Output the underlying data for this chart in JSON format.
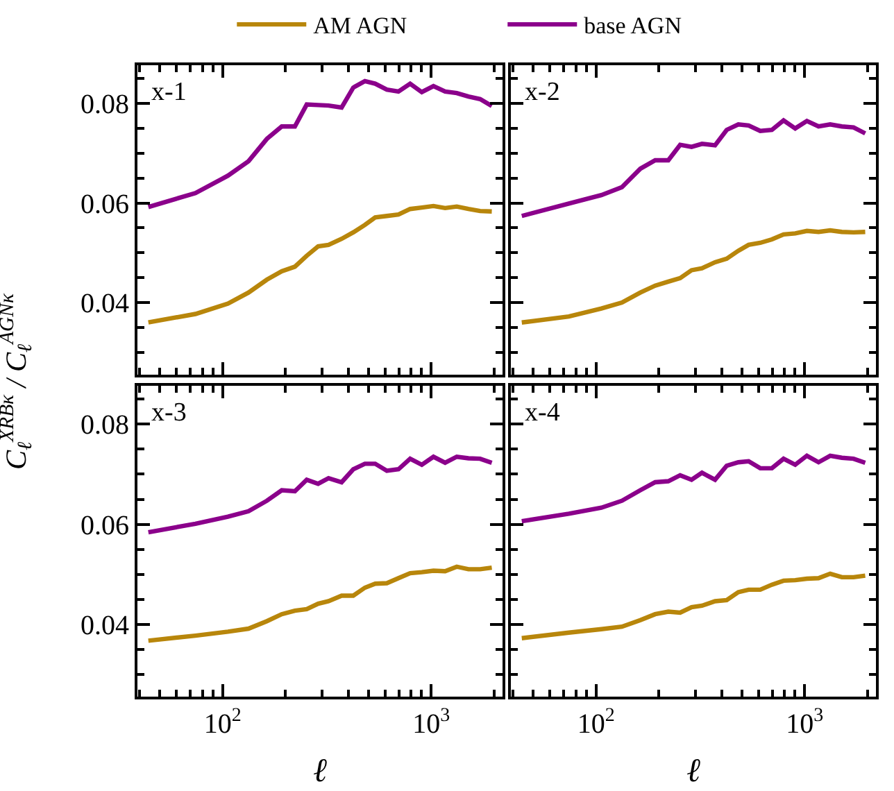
{
  "chart_data": [
    {
      "type": "line",
      "log": "x",
      "title": "x-1",
      "ylabel": "C$_{ℓ}$$^{XRBκ}$ / C$_{ℓ}$$^{AGNκ}$",
      "legend": "top",
      "tick_labels": "y",
      "line_style": "solid",
      "marker": "none",
      "x": [
        44,
        74,
        106,
        133,
        163,
        192,
        222,
        253,
        287,
        322,
        372,
        423,
        481,
        539,
        613,
        697,
        793,
        902,
        1026,
        1167,
        1327,
        1510,
        1718,
        1954
      ],
      "xlim": [
        39,
        2200
      ],
      "ylim": [
        0.0255,
        0.0877
      ],
      "xticks": [
        {
          "value": 40,
          "label": null
        },
        {
          "value": 50,
          "label": null
        },
        {
          "value": 60,
          "label": null
        },
        {
          "value": 70,
          "label": null
        },
        {
          "value": 80,
          "label": null
        },
        {
          "value": 90,
          "label": null
        },
        {
          "value": 100,
          "label": "10$^{2}$"
        },
        {
          "value": 200,
          "label": null
        },
        {
          "value": 300,
          "label": null
        },
        {
          "value": 400,
          "label": null
        },
        {
          "value": 500,
          "label": null
        },
        {
          "value": 600,
          "label": null
        },
        {
          "value": 700,
          "label": null
        },
        {
          "value": 800,
          "label": null
        },
        {
          "value": 900,
          "label": null
        },
        {
          "value": 1000,
          "label": "10$^{3}$"
        },
        {
          "value": 2000,
          "label": null
        }
      ],
      "yticks": [
        {
          "value": 0.03,
          "label": null
        },
        {
          "value": 0.035,
          "label": null
        },
        0.04,
        {
          "value": 0.045,
          "label": null
        },
        {
          "value": 0.05,
          "label": null
        },
        {
          "value": 0.055,
          "label": null
        },
        0.06,
        {
          "value": 0.065,
          "label": null
        },
        {
          "value": 0.07,
          "label": null
        },
        {
          "value": 0.075,
          "label": null
        },
        0.08,
        {
          "value": 0.085,
          "label": null
        }
      ],
      "series": [
        {
          "name": "AM AGN",
          "color": "#b8860b",
          "values": [
            0.036,
            0.0377,
            0.0398,
            0.042,
            0.0446,
            0.0463,
            0.0472,
            0.0494,
            0.0513,
            0.0516,
            0.0528,
            0.0541,
            0.0556,
            0.0571,
            0.0574,
            0.0577,
            0.0588,
            0.0591,
            0.0594,
            0.059,
            0.0593,
            0.0588,
            0.0584,
            0.0583
          ]
        },
        {
          "name": "base AGN",
          "color": "#8b008b",
          "values": [
            0.0592,
            0.062,
            0.0655,
            0.0684,
            0.0729,
            0.0754,
            0.0754,
            0.0798,
            0.0797,
            0.0796,
            0.0792,
            0.0832,
            0.0845,
            0.084,
            0.0828,
            0.0824,
            0.084,
            0.0823,
            0.0835,
            0.0824,
            0.0821,
            0.0814,
            0.0809,
            0.0795
          ]
        }
      ]
    },
    {
      "type": "line",
      "log": "x",
      "title": "x-2",
      "tick_labels": false,
      "line_style": "solid",
      "marker": "none",
      "x": [
        44,
        74,
        106,
        133,
        163,
        192,
        222,
        253,
        287,
        322,
        372,
        423,
        481,
        539,
        613,
        697,
        793,
        902,
        1026,
        1167,
        1327,
        1510,
        1718,
        1954
      ],
      "xlim": [
        39,
        2200
      ],
      "ylim": [
        0.0255,
        0.0877
      ],
      "xticks": [
        {
          "value": 40,
          "label": null
        },
        {
          "value": 50,
          "label": null
        },
        {
          "value": 60,
          "label": null
        },
        {
          "value": 70,
          "label": null
        },
        {
          "value": 80,
          "label": null
        },
        {
          "value": 90,
          "label": null
        },
        {
          "value": 100,
          "label": "10$^{2}$"
        },
        {
          "value": 200,
          "label": null
        },
        {
          "value": 300,
          "label": null
        },
        {
          "value": 400,
          "label": null
        },
        {
          "value": 500,
          "label": null
        },
        {
          "value": 600,
          "label": null
        },
        {
          "value": 700,
          "label": null
        },
        {
          "value": 800,
          "label": null
        },
        {
          "value": 900,
          "label": null
        },
        {
          "value": 1000,
          "label": "10$^{3}$"
        },
        {
          "value": 2000,
          "label": null
        }
      ],
      "yticks": [
        {
          "value": 0.03,
          "label": null
        },
        {
          "value": 0.035,
          "label": null
        },
        0.04,
        {
          "value": 0.045,
          "label": null
        },
        {
          "value": 0.05,
          "label": null
        },
        {
          "value": 0.055,
          "label": null
        },
        0.06,
        {
          "value": 0.065,
          "label": null
        },
        {
          "value": 0.07,
          "label": null
        },
        {
          "value": 0.075,
          "label": null
        },
        0.08,
        {
          "value": 0.085,
          "label": null
        }
      ],
      "series": [
        {
          "color": "#b8860b",
          "values": [
            0.036,
            0.0372,
            0.0388,
            0.04,
            0.042,
            0.0434,
            0.0442,
            0.0449,
            0.0465,
            0.0469,
            0.0481,
            0.0488,
            0.0504,
            0.0516,
            0.052,
            0.0527,
            0.0537,
            0.0539,
            0.0544,
            0.0542,
            0.0545,
            0.0542,
            0.0541,
            0.0542
          ]
        },
        {
          "color": "#8b008b",
          "values": [
            0.0574,
            0.0599,
            0.0616,
            0.0632,
            0.0669,
            0.0686,
            0.0686,
            0.0717,
            0.0713,
            0.0719,
            0.0716,
            0.0747,
            0.0758,
            0.0756,
            0.0745,
            0.0747,
            0.0766,
            0.075,
            0.0765,
            0.0754,
            0.0758,
            0.0754,
            0.0752,
            0.074
          ]
        }
      ]
    },
    {
      "type": "line",
      "log": "x",
      "title": "x-3",
      "xlabel": "ℓ",
      "line_style": "solid",
      "marker": "none",
      "x": [
        44,
        74,
        106,
        133,
        163,
        192,
        222,
        253,
        287,
        322,
        372,
        423,
        481,
        539,
        613,
        697,
        793,
        902,
        1026,
        1167,
        1327,
        1510,
        1718,
        1954
      ],
      "xlim": [
        39,
        2200
      ],
      "ylim": [
        0.0255,
        0.0877
      ],
      "xticks": [
        {
          "value": 40,
          "label": null
        },
        {
          "value": 50,
          "label": null
        },
        {
          "value": 60,
          "label": null
        },
        {
          "value": 70,
          "label": null
        },
        {
          "value": 80,
          "label": null
        },
        {
          "value": 90,
          "label": null
        },
        {
          "value": 100,
          "label": "10$^{2}$"
        },
        {
          "value": 200,
          "label": null
        },
        {
          "value": 300,
          "label": null
        },
        {
          "value": 400,
          "label": null
        },
        {
          "value": 500,
          "label": null
        },
        {
          "value": 600,
          "label": null
        },
        {
          "value": 700,
          "label": null
        },
        {
          "value": 800,
          "label": null
        },
        {
          "value": 900,
          "label": null
        },
        {
          "value": 1000,
          "label": "10$^{3}$"
        },
        {
          "value": 2000,
          "label": null
        }
      ],
      "yticks": [
        {
          "value": 0.03,
          "label": null
        },
        {
          "value": 0.035,
          "label": null
        },
        0.04,
        {
          "value": 0.045,
          "label": null
        },
        {
          "value": 0.05,
          "label": null
        },
        {
          "value": 0.055,
          "label": null
        },
        0.06,
        {
          "value": 0.065,
          "label": null
        },
        {
          "value": 0.07,
          "label": null
        },
        {
          "value": 0.075,
          "label": null
        },
        0.08,
        {
          "value": 0.085,
          "label": null
        }
      ],
      "series": [
        {
          "color": "#b8860b",
          "values": [
            0.0367,
            0.0377,
            0.0385,
            0.0391,
            0.0406,
            0.042,
            0.0427,
            0.043,
            0.0441,
            0.0446,
            0.0457,
            0.0457,
            0.0473,
            0.0481,
            0.0482,
            0.0492,
            0.0502,
            0.0504,
            0.0507,
            0.0506,
            0.0515,
            0.051,
            0.051,
            0.0513
          ]
        },
        {
          "color": "#8b008b",
          "values": [
            0.0584,
            0.0601,
            0.0615,
            0.0626,
            0.0647,
            0.0668,
            0.0666,
            0.0689,
            0.0681,
            0.0692,
            0.0684,
            0.071,
            0.0721,
            0.0721,
            0.0707,
            0.071,
            0.0731,
            0.0719,
            0.0735,
            0.0723,
            0.0735,
            0.0732,
            0.0731,
            0.0723
          ]
        }
      ]
    },
    {
      "type": "line",
      "log": "x",
      "title": "x-4",
      "xlabel": "ℓ",
      "tick_labels": "x",
      "line_style": "solid",
      "marker": "none",
      "x": [
        44,
        74,
        106,
        133,
        163,
        192,
        222,
        253,
        287,
        322,
        372,
        423,
        481,
        539,
        613,
        697,
        793,
        902,
        1026,
        1167,
        1327,
        1510,
        1718,
        1954
      ],
      "xlim": [
        39,
        2200
      ],
      "ylim": [
        0.0255,
        0.0877
      ],
      "xticks": [
        {
          "value": 40,
          "label": null
        },
        {
          "value": 50,
          "label": null
        },
        {
          "value": 60,
          "label": null
        },
        {
          "value": 70,
          "label": null
        },
        {
          "value": 80,
          "label": null
        },
        {
          "value": 90,
          "label": null
        },
        {
          "value": 100,
          "label": "10$^{2}$"
        },
        {
          "value": 200,
          "label": null
        },
        {
          "value": 300,
          "label": null
        },
        {
          "value": 400,
          "label": null
        },
        {
          "value": 500,
          "label": null
        },
        {
          "value": 600,
          "label": null
        },
        {
          "value": 700,
          "label": null
        },
        {
          "value": 800,
          "label": null
        },
        {
          "value": 900,
          "label": null
        },
        {
          "value": 1000,
          "label": "10$^{3}$"
        },
        {
          "value": 2000,
          "label": null
        }
      ],
      "yticks": [
        {
          "value": 0.03,
          "label": null
        },
        {
          "value": 0.035,
          "label": null
        },
        0.04,
        {
          "value": 0.045,
          "label": null
        },
        {
          "value": 0.05,
          "label": null
        },
        {
          "value": 0.055,
          "label": null
        },
        0.06,
        {
          "value": 0.065,
          "label": null
        },
        {
          "value": 0.07,
          "label": null
        },
        {
          "value": 0.075,
          "label": null
        },
        0.08,
        {
          "value": 0.085,
          "label": null
        }
      ],
      "series": [
        {
          "color": "#b8860b",
          "values": [
            0.0372,
            0.0383,
            0.039,
            0.0395,
            0.0408,
            0.042,
            0.0425,
            0.0423,
            0.0434,
            0.0437,
            0.0446,
            0.0448,
            0.0464,
            0.0469,
            0.0469,
            0.0479,
            0.0487,
            0.0488,
            0.0491,
            0.0492,
            0.0501,
            0.0494,
            0.0494,
            0.0497
          ]
        },
        {
          "color": "#8b008b",
          "values": [
            0.0606,
            0.0621,
            0.0633,
            0.0647,
            0.0668,
            0.0684,
            0.0686,
            0.0698,
            0.0689,
            0.0703,
            0.0689,
            0.0717,
            0.0724,
            0.0726,
            0.0712,
            0.0712,
            0.0731,
            0.0719,
            0.0737,
            0.0724,
            0.0737,
            0.0733,
            0.0731,
            0.0723
          ]
        }
      ]
    }
  ]
}
